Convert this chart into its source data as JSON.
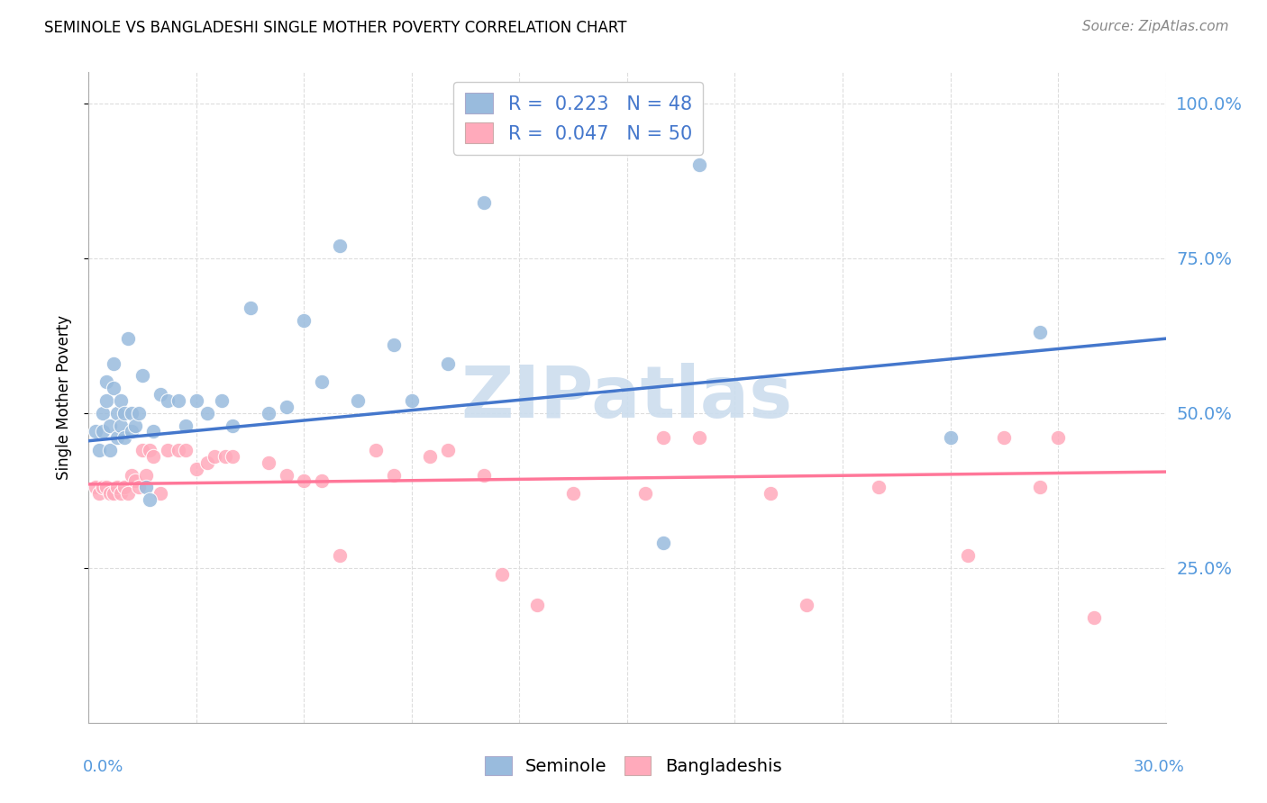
{
  "title": "SEMINOLE VS BANGLADESHI SINGLE MOTHER POVERTY CORRELATION CHART",
  "source": "Source: ZipAtlas.com",
  "ylabel": "Single Mother Poverty",
  "ytick_values": [
    0.25,
    0.5,
    0.75,
    1.0
  ],
  "ytick_labels": [
    "25.0%",
    "50.0%",
    "75.0%",
    "100.0%"
  ],
  "xlim": [
    0.0,
    0.3
  ],
  "ylim": [
    0.0,
    1.05
  ],
  "legend_blue": {
    "R": "0.223",
    "N": "48",
    "label": "Seminole"
  },
  "legend_pink": {
    "R": "0.047",
    "N": "50",
    "label": "Bangladeshis"
  },
  "seminole_x": [
    0.002,
    0.003,
    0.004,
    0.004,
    0.005,
    0.005,
    0.006,
    0.006,
    0.007,
    0.007,
    0.008,
    0.008,
    0.009,
    0.009,
    0.01,
    0.01,
    0.011,
    0.012,
    0.012,
    0.013,
    0.014,
    0.015,
    0.016,
    0.017,
    0.018,
    0.02,
    0.022,
    0.025,
    0.027,
    0.03,
    0.033,
    0.037,
    0.04,
    0.045,
    0.05,
    0.055,
    0.06,
    0.065,
    0.07,
    0.075,
    0.085,
    0.09,
    0.1,
    0.11,
    0.16,
    0.17,
    0.24,
    0.265
  ],
  "seminole_y": [
    0.47,
    0.44,
    0.5,
    0.47,
    0.55,
    0.52,
    0.48,
    0.44,
    0.58,
    0.54,
    0.5,
    0.46,
    0.52,
    0.48,
    0.5,
    0.46,
    0.62,
    0.5,
    0.47,
    0.48,
    0.5,
    0.56,
    0.38,
    0.36,
    0.47,
    0.53,
    0.52,
    0.52,
    0.48,
    0.52,
    0.5,
    0.52,
    0.48,
    0.67,
    0.5,
    0.51,
    0.65,
    0.55,
    0.77,
    0.52,
    0.61,
    0.52,
    0.58,
    0.84,
    0.29,
    0.9,
    0.46,
    0.63
  ],
  "bangladeshi_x": [
    0.002,
    0.003,
    0.004,
    0.005,
    0.006,
    0.007,
    0.008,
    0.009,
    0.01,
    0.011,
    0.012,
    0.013,
    0.014,
    0.015,
    0.016,
    0.017,
    0.018,
    0.02,
    0.022,
    0.025,
    0.027,
    0.03,
    0.033,
    0.035,
    0.038,
    0.04,
    0.05,
    0.055,
    0.06,
    0.065,
    0.07,
    0.08,
    0.085,
    0.095,
    0.1,
    0.11,
    0.115,
    0.125,
    0.135,
    0.155,
    0.16,
    0.17,
    0.19,
    0.2,
    0.22,
    0.245,
    0.255,
    0.265,
    0.27,
    0.28
  ],
  "bangladeshi_y": [
    0.38,
    0.37,
    0.38,
    0.38,
    0.37,
    0.37,
    0.38,
    0.37,
    0.38,
    0.37,
    0.4,
    0.39,
    0.38,
    0.44,
    0.4,
    0.44,
    0.43,
    0.37,
    0.44,
    0.44,
    0.44,
    0.41,
    0.42,
    0.43,
    0.43,
    0.43,
    0.42,
    0.4,
    0.39,
    0.39,
    0.27,
    0.44,
    0.4,
    0.43,
    0.44,
    0.4,
    0.24,
    0.19,
    0.37,
    0.37,
    0.46,
    0.46,
    0.37,
    0.19,
    0.38,
    0.27,
    0.46,
    0.38,
    0.46,
    0.17
  ],
  "blue_line_x": [
    0.0,
    0.3
  ],
  "blue_line_y": [
    0.455,
    0.62
  ],
  "pink_line_x": [
    0.0,
    0.3
  ],
  "pink_line_y": [
    0.385,
    0.405
  ],
  "blue_dot_color": "#99BBDD",
  "pink_dot_color": "#FFAABB",
  "blue_line_color": "#4477CC",
  "pink_line_color": "#FF7799",
  "watermark": "ZIPatlas",
  "watermark_color": "#CCDDEE",
  "background_color": "#ffffff",
  "grid_color": "#dddddd",
  "right_label_color": "#5599DD",
  "bottom_label_color": "#5599DD"
}
